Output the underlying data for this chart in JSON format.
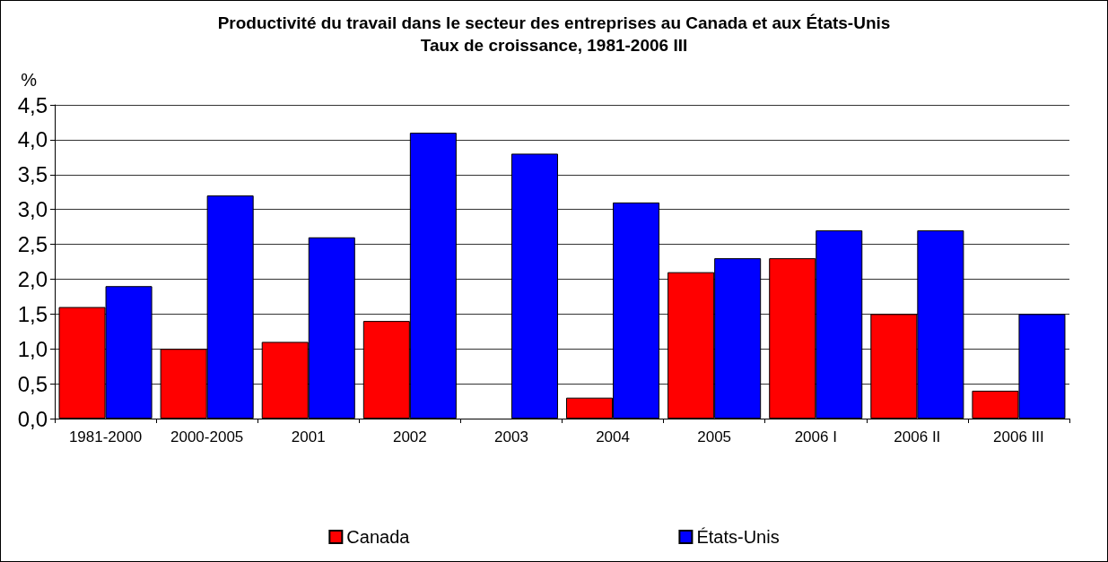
{
  "chart_data": {
    "type": "bar",
    "title": "Productivité du travail dans le secteur des entreprises au Canada et aux États-Unis",
    "subtitle": "Taux de croissance, 1981-2006 III",
    "ylabel": "%",
    "categories": [
      "1981-2000",
      "2000-2005",
      "2001",
      "2002",
      "2003",
      "2004",
      "2005",
      "2006 I",
      "2006 II",
      "2006 III"
    ],
    "series": [
      {
        "name": "Canada",
        "color": "#ff0000",
        "values": [
          1.6,
          1.0,
          1.1,
          1.4,
          null,
          0.3,
          2.1,
          2.3,
          1.5,
          0.4
        ]
      },
      {
        "name": "États-Unis",
        "color": "#0000ff",
        "values": [
          1.9,
          3.2,
          2.6,
          4.1,
          3.8,
          3.1,
          2.3,
          2.7,
          2.7,
          1.5
        ]
      }
    ],
    "ylim": [
      0,
      4.5
    ],
    "yticks": [
      {
        "value": 0,
        "label": "0,0"
      },
      {
        "value": 0.5,
        "label": "0,5"
      },
      {
        "value": 1,
        "label": "1,0"
      },
      {
        "value": 1.5,
        "label": "1,5"
      },
      {
        "value": 2,
        "label": "2,0"
      },
      {
        "value": 2.5,
        "label": "2,5"
      },
      {
        "value": 3,
        "label": "3,0"
      },
      {
        "value": 3.5,
        "label": "3,5"
      },
      {
        "value": 4,
        "label": "4,0"
      },
      {
        "value": 4.5,
        "label": "4,5"
      }
    ],
    "grid": "y",
    "legend": "bottom"
  }
}
